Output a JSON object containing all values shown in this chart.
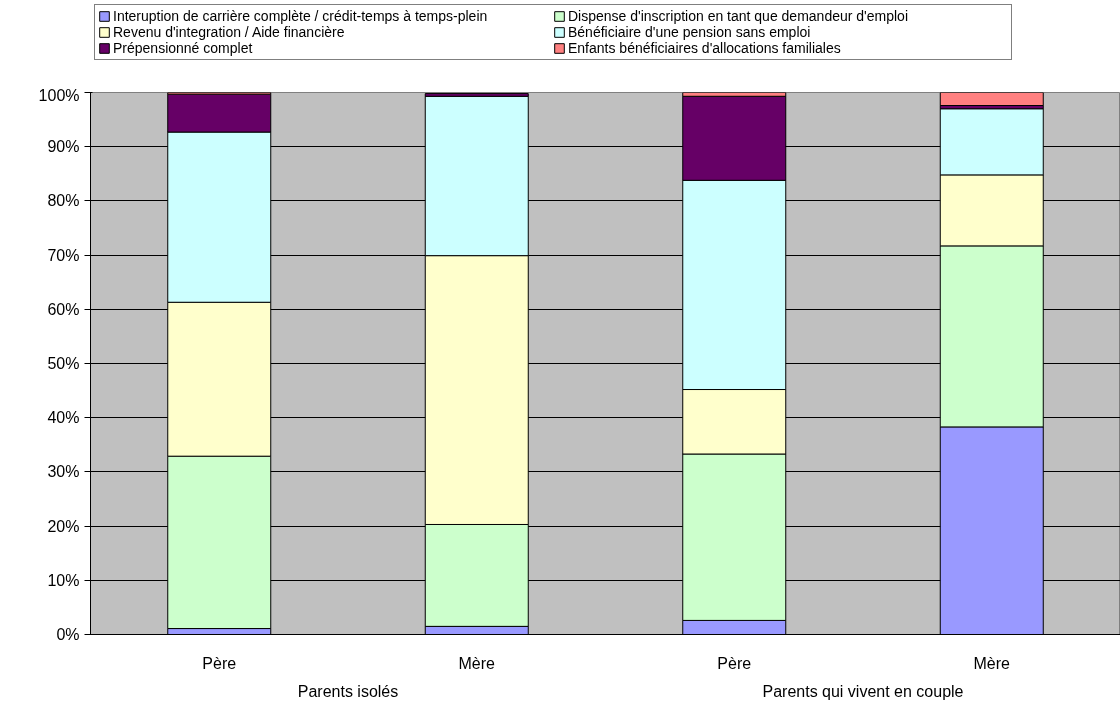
{
  "chart_data": {
    "type": "bar",
    "stacked": true,
    "categories": [
      "Père",
      "Mère",
      "Père",
      "Mère"
    ],
    "annotations": [
      "Parents isolés",
      "Parents qui vivent en couple"
    ],
    "series": [
      {
        "name": "Interuption de carrière complète / crédit-temps à temps-plein",
        "color": "#9999ff",
        "values": [
          1.1,
          1.5,
          2.6,
          38.3
        ]
      },
      {
        "name": "Dispense d'inscription en tant que demandeur d'emploi",
        "color": "#ccffcc",
        "values": [
          31.8,
          18.8,
          30.7,
          33.4
        ]
      },
      {
        "name": "Revenu d'integration / Aide financière",
        "color": "#ffffcc",
        "values": [
          28.4,
          49.6,
          11.9,
          13.1
        ]
      },
      {
        "name": "Bénéficiaire d'une pension sans emploi",
        "color": "#ccffff",
        "values": [
          31.4,
          29.4,
          38.6,
          12.2
        ]
      },
      {
        "name": "Prépensionné complet",
        "color": "#660066",
        "values": [
          7.0,
          0.5,
          15.5,
          0.6
        ]
      },
      {
        "name": "Enfants bénéficiaires d'allocations familiales",
        "color": "#ff8080",
        "values": [
          0.3,
          null,
          0.7,
          2.4
        ]
      }
    ],
    "ylim": [
      0,
      100
    ],
    "yticks": [
      {
        "value": 0,
        "label": "0%"
      },
      {
        "value": 10,
        "label": "10%"
      },
      {
        "value": 20,
        "label": "20%"
      },
      {
        "value": 30,
        "label": "30%"
      },
      {
        "value": 40,
        "label": "40%"
      },
      {
        "value": 50,
        "label": "50%"
      },
      {
        "value": 60,
        "label": "60%"
      },
      {
        "value": 70,
        "label": "70%"
      },
      {
        "value": 80,
        "label": "80%"
      },
      {
        "value": 90,
        "label": "90%"
      },
      {
        "value": 100,
        "label": "100%"
      }
    ],
    "grid": "y",
    "legend": "top"
  }
}
